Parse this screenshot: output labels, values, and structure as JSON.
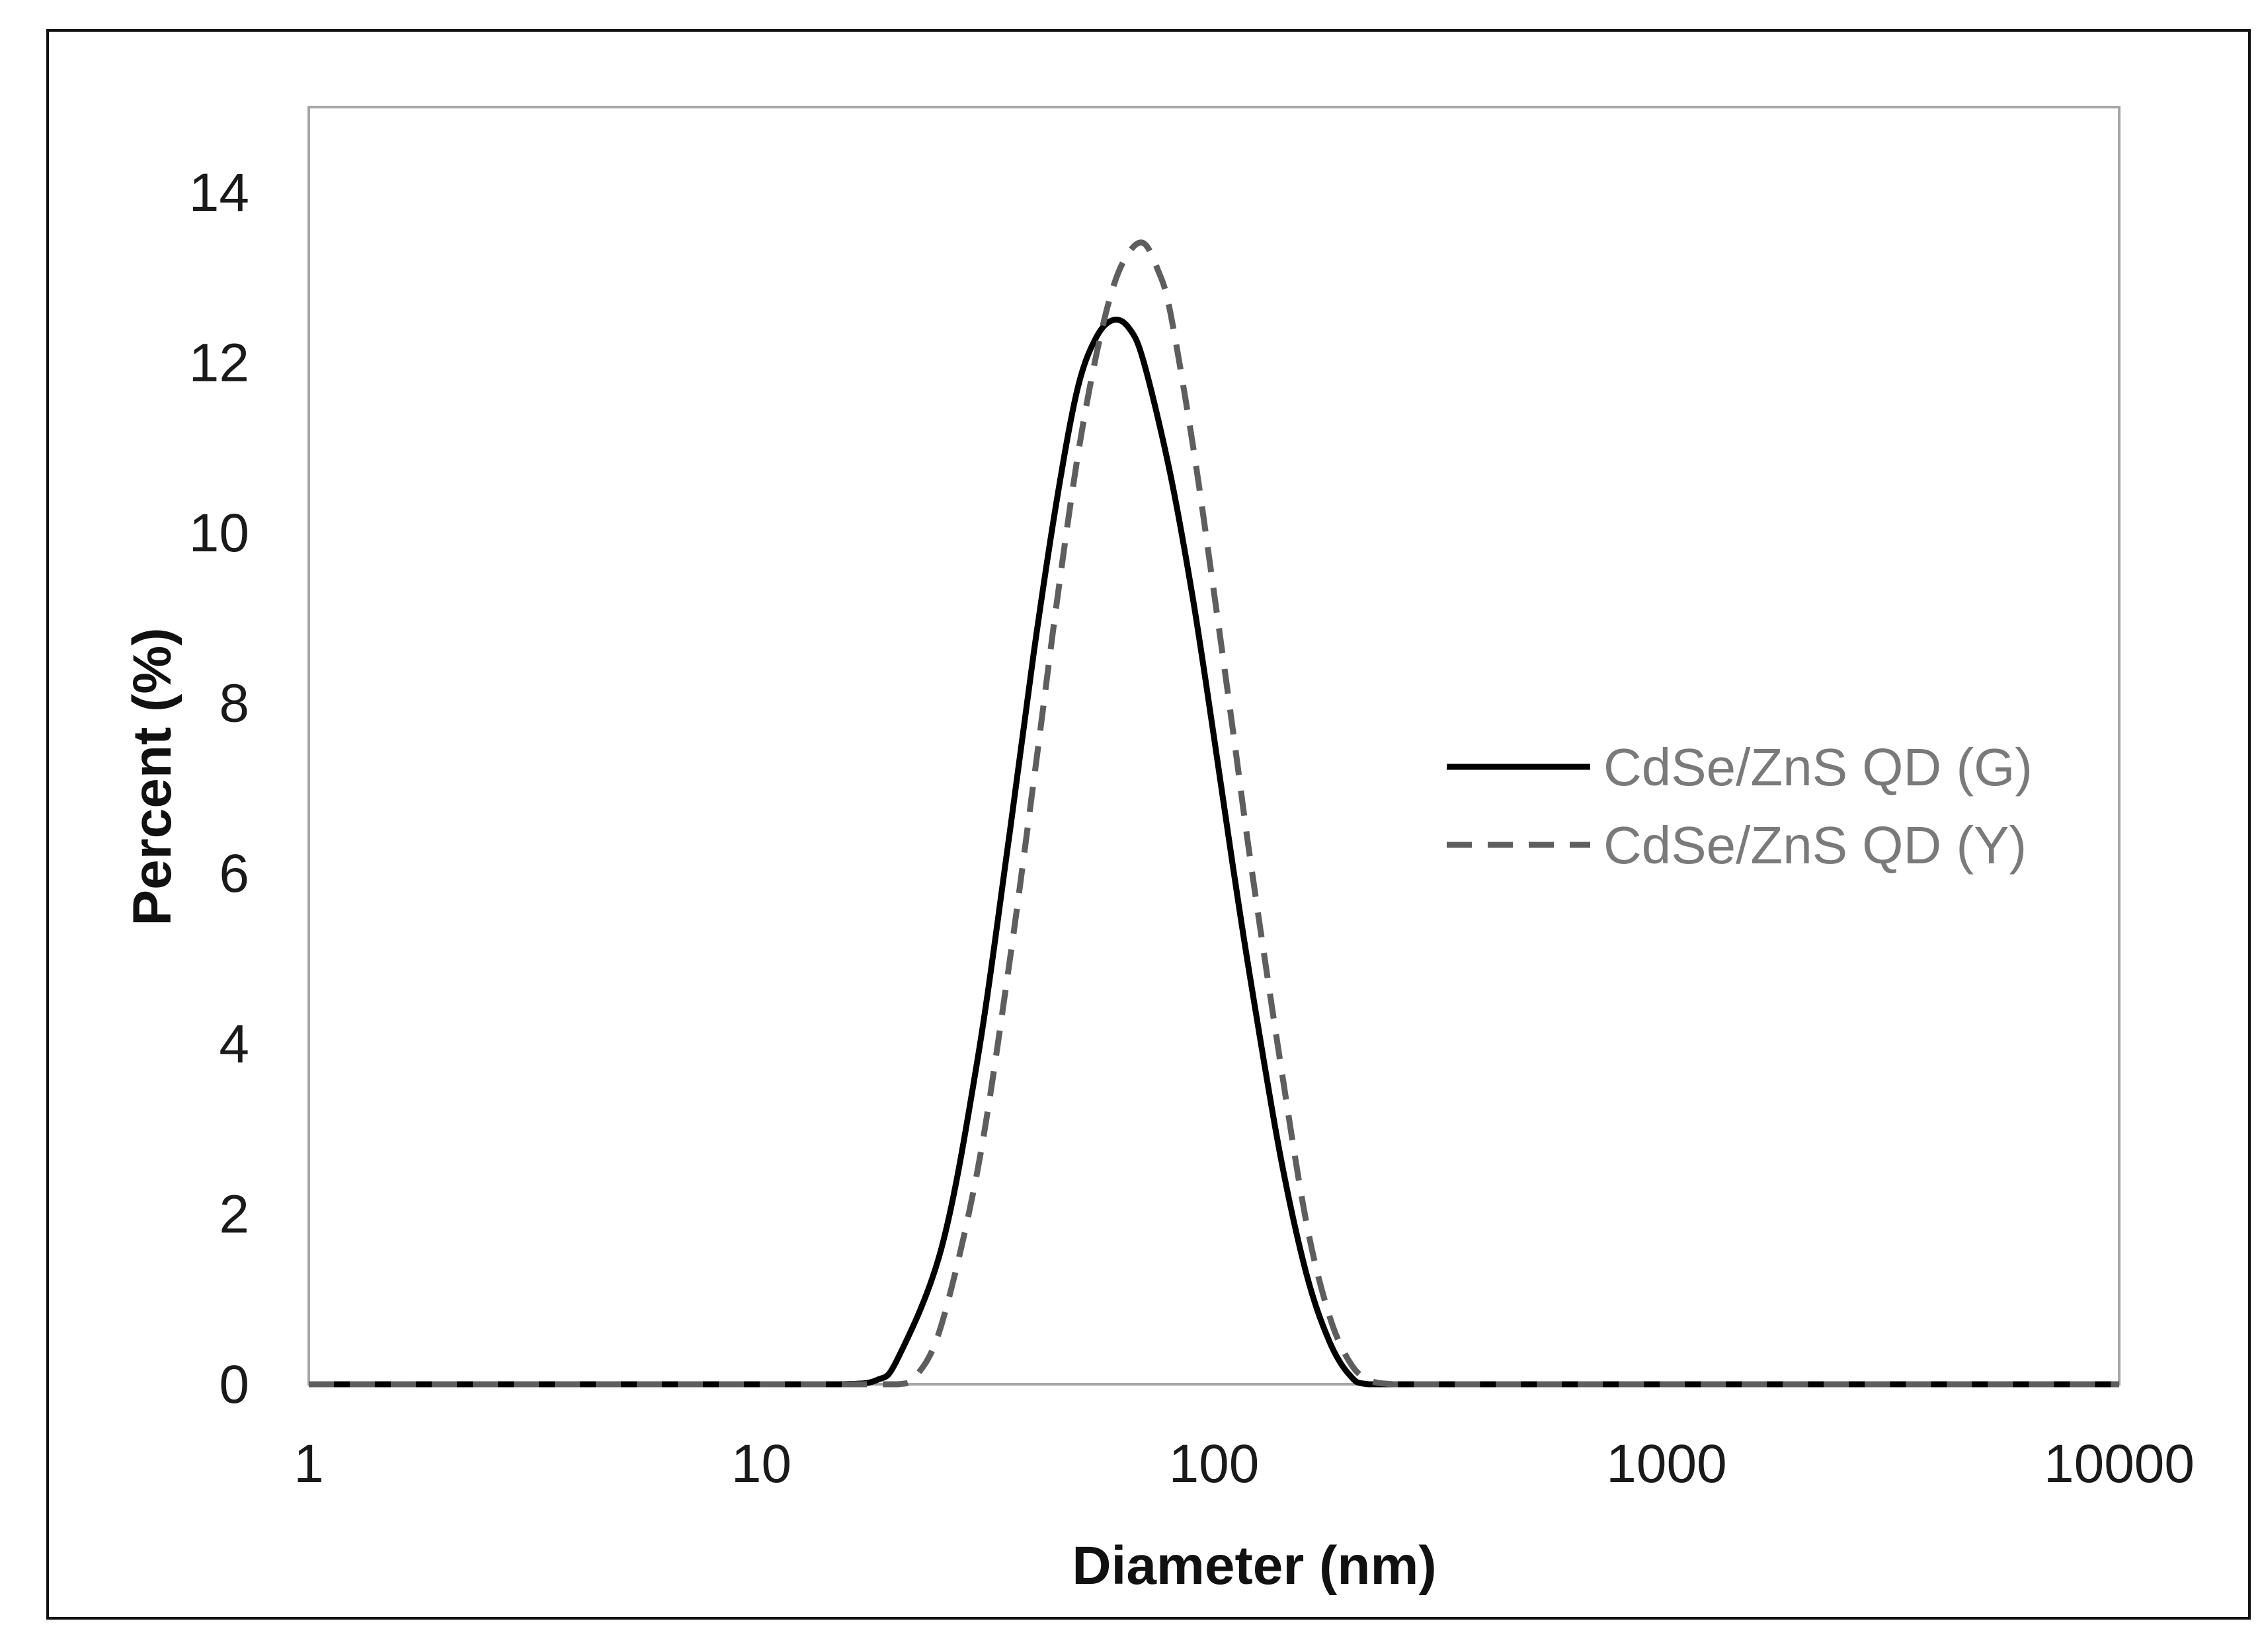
{
  "chart_data": {
    "type": "line",
    "title": "",
    "xlabel": "Diameter (nm)",
    "ylabel": "Percent (%)",
    "xscale": "log",
    "xlim": [
      1,
      10000
    ],
    "ylim": [
      0,
      15
    ],
    "x_ticks": [
      1,
      10,
      100,
      1000,
      10000
    ],
    "x_tick_labels": [
      "1",
      "10",
      "100",
      "1000",
      "10000"
    ],
    "y_ticks": [
      0,
      2,
      4,
      6,
      8,
      10,
      12,
      14
    ],
    "y_tick_labels": [
      "0",
      "2",
      "4",
      "6",
      "8",
      "10",
      "12",
      "14"
    ],
    "grid": false,
    "legend_position": "right",
    "series": [
      {
        "name": "CdSe/ZnS QD (G)",
        "color": "#000000",
        "line_style": "solid",
        "x": [
          1,
          5,
          10,
          15,
          18,
          20,
          25,
          30,
          35,
          40,
          45,
          50,
          55,
          60,
          65,
          70,
          80,
          90,
          100,
          110,
          120,
          140,
          160,
          180,
          200,
          220,
          300,
          1000,
          10000
        ],
        "y": [
          0,
          0,
          0,
          0,
          0.05,
          0.3,
          1.6,
          3.8,
          6.3,
          8.6,
          10.4,
          11.7,
          12.3,
          12.5,
          12.4,
          12.0,
          10.7,
          9.2,
          7.6,
          6.1,
          4.8,
          2.7,
          1.3,
          0.5,
          0.1,
          0,
          0,
          0,
          0
        ]
      },
      {
        "name": "CdSe/ZnS QD (Y)",
        "color": "#5e5e5e",
        "line_style": "dashed",
        "x": [
          1,
          5,
          10,
          15,
          20,
          22,
          25,
          30,
          35,
          40,
          45,
          50,
          55,
          60,
          65,
          70,
          75,
          80,
          90,
          100,
          110,
          120,
          140,
          160,
          180,
          200,
          220,
          250,
          300,
          1000,
          10000
        ],
        "y": [
          0,
          0,
          0,
          0,
          0,
          0.1,
          0.7,
          2.5,
          4.8,
          7.1,
          9.2,
          10.9,
          12.1,
          12.9,
          13.3,
          13.4,
          13.1,
          12.6,
          11.0,
          9.3,
          7.7,
          6.2,
          3.8,
          1.9,
          0.8,
          0.25,
          0.05,
          0,
          0,
          0,
          0
        ]
      }
    ]
  }
}
